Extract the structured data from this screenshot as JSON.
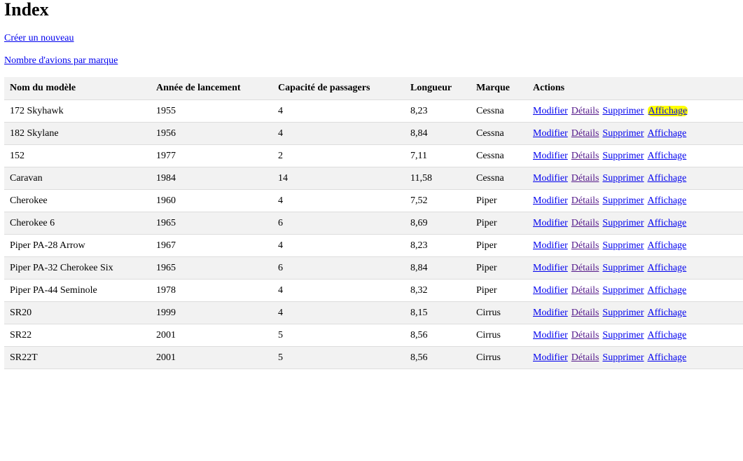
{
  "page": {
    "title": "Index",
    "create_link": "Créer un nouveau",
    "count_link": "Nombre d'avions par marque"
  },
  "table": {
    "headers": [
      "Nom du modèle",
      "Année de lancement",
      "Capacité de passagers",
      "Longueur",
      "Marque",
      "Actions"
    ],
    "actions": {
      "edit": "Modifier",
      "details": "Détails",
      "delete": "Supprimer",
      "display": "Affichage"
    },
    "rows": [
      {
        "model": "172 Skyhawk",
        "year": "1955",
        "capacity": "4",
        "length": "8,23",
        "brand": "Cessna"
      },
      {
        "model": "182 Skylane",
        "year": "1956",
        "capacity": "4",
        "length": "8,84",
        "brand": "Cessna"
      },
      {
        "model": "152",
        "year": "1977",
        "capacity": "2",
        "length": "7,11",
        "brand": "Cessna"
      },
      {
        "model": "Caravan",
        "year": "1984",
        "capacity": "14",
        "length": "11,58",
        "brand": "Cessna"
      },
      {
        "model": "Cherokee",
        "year": "1960",
        "capacity": "4",
        "length": "7,52",
        "brand": "Piper"
      },
      {
        "model": "Cherokee 6",
        "year": "1965",
        "capacity": "6",
        "length": "8,69",
        "brand": "Piper"
      },
      {
        "model": "Piper PA-28 Arrow",
        "year": "1967",
        "capacity": "4",
        "length": "8,23",
        "brand": "Piper"
      },
      {
        "model": "Piper PA-32 Cherokee Six",
        "year": "1965",
        "capacity": "6",
        "length": "8,84",
        "brand": "Piper"
      },
      {
        "model": "Piper PA-44 Seminole",
        "year": "1978",
        "capacity": "4",
        "length": "8,32",
        "brand": "Piper"
      },
      {
        "model": "SR20",
        "year": "1999",
        "capacity": "4",
        "length": "8,15",
        "brand": "Cirrus"
      },
      {
        "model": "SR22",
        "year": "2001",
        "capacity": "5",
        "length": "8,56",
        "brand": "Cirrus"
      },
      {
        "model": "SR22T",
        "year": "2001",
        "capacity": "5",
        "length": "8,56",
        "brand": "Cirrus"
      }
    ]
  },
  "colors": {
    "link": "#0000ee",
    "visited_link": "#551a8b",
    "highlight": "#ffff00",
    "header_bg": "#f2f2f2",
    "row_alt_bg": "#f2f2f2"
  }
}
